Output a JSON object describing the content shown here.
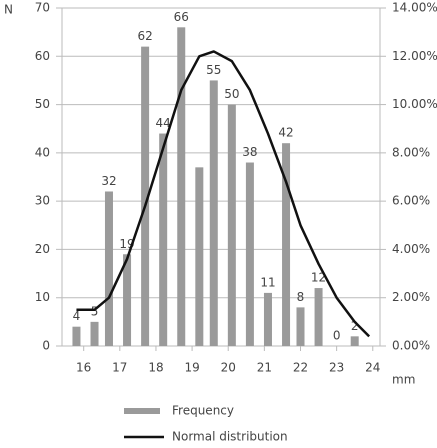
{
  "chart_data": {
    "type": "bar",
    "y_label": "N",
    "x_label": "mm",
    "x": [
      15.8,
      16.3,
      16.7,
      17.2,
      17.7,
      18.2,
      18.7,
      19.2,
      19.6,
      20.1,
      20.6,
      21.1,
      21.6,
      22.0,
      22.5,
      23.0,
      23.5,
      23.9
    ],
    "xlim": [
      15.4,
      24.2
    ],
    "xticks": [
      16,
      17,
      18,
      19,
      20,
      21,
      22,
      23,
      24
    ],
    "ylim": [
      0,
      70
    ],
    "yticks": [
      0,
      10,
      20,
      30,
      40,
      50,
      60,
      70
    ],
    "y2lim": [
      0,
      14
    ],
    "y2ticks": [
      {
        "value": 0,
        "label": "0.00%"
      },
      {
        "value": 2,
        "label": "2.00%"
      },
      {
        "value": 4,
        "label": "4.00%"
      },
      {
        "value": 6,
        "label": "6.00%"
      },
      {
        "value": 8,
        "label": "8.00%"
      },
      {
        "value": 10,
        "label": "10.00%"
      },
      {
        "value": 12,
        "label": "12.00%"
      },
      {
        "value": 14,
        "label": "14.00%"
      }
    ],
    "grid": true,
    "series": [
      {
        "name": "Frequency",
        "type": "bar",
        "color": "#9a9a9a",
        "values": [
          4,
          5,
          32,
          19,
          62,
          44,
          66,
          37,
          55,
          50,
          38,
          11,
          42,
          8,
          12,
          0,
          2,
          null
        ],
        "value_labels": [
          4,
          5,
          32,
          19,
          62,
          44,
          66,
          null,
          55,
          50,
          38,
          11,
          42,
          8,
          12,
          0,
          2,
          null
        ]
      },
      {
        "name": "Normal distribution",
        "type": "line",
        "color": "#111111",
        "axis": "y2",
        "values": [
          1.5,
          1.5,
          2.0,
          3.6,
          5.8,
          8.2,
          10.6,
          12.0,
          12.2,
          11.8,
          10.6,
          8.8,
          6.8,
          5.0,
          3.4,
          2.0,
          1.0,
          0.4
        ]
      }
    ]
  }
}
